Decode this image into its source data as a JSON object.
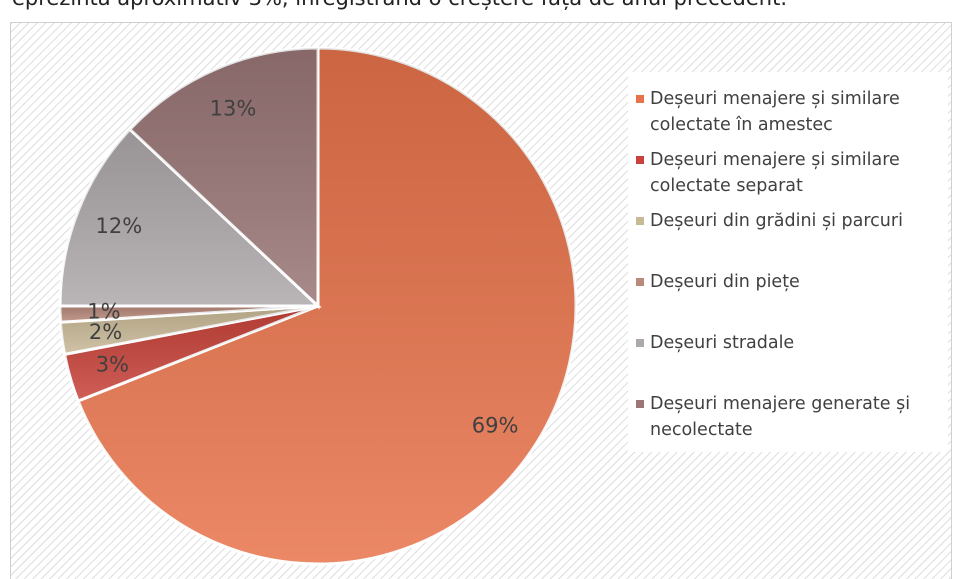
{
  "caption_text": "eprezintă aproximativ 3%, înregistrând o creștere față de anul precedent.",
  "chart_data": {
    "type": "pie",
    "categories": [
      "Deșeuri menajere și similare colectate în amestec",
      "Deșeuri menajere și similare colectate separat",
      "Deșeuri din grădini și parcuri",
      "Deșeuri din piețe",
      "Deșeuri stradale",
      "Deșeuri menajere generate și necolectate"
    ],
    "values": [
      69,
      3,
      2,
      1,
      12,
      13
    ],
    "value_labels": [
      "69%",
      "3%",
      "2%",
      "1%",
      "12%",
      "13%"
    ],
    "colors": [
      "#e8734b",
      "#c8433a",
      "#c9b996",
      "#b98a7c",
      "#aea8aa",
      "#9a7676"
    ],
    "legend": "right"
  }
}
